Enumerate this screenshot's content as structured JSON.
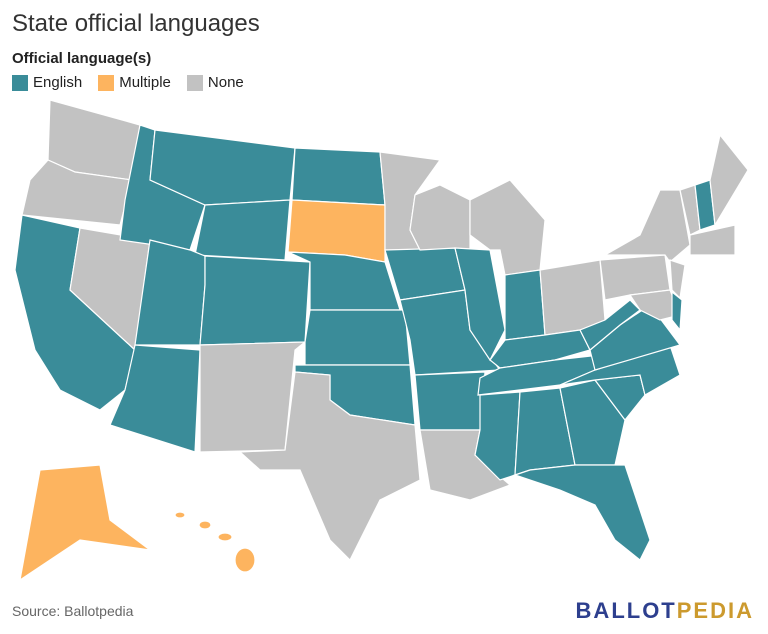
{
  "title": "State official languages",
  "legend_title": "Official language(s)",
  "legend": [
    {
      "label": "English",
      "color": "#3a8c99"
    },
    {
      "label": "Multiple",
      "color": "#fdb45f"
    },
    {
      "label": "None",
      "color": "#c2c2c2"
    }
  ],
  "source": "Source: Ballotpedia",
  "logo": {
    "first": "BALLOT",
    "second": "PEDIA"
  }
}
